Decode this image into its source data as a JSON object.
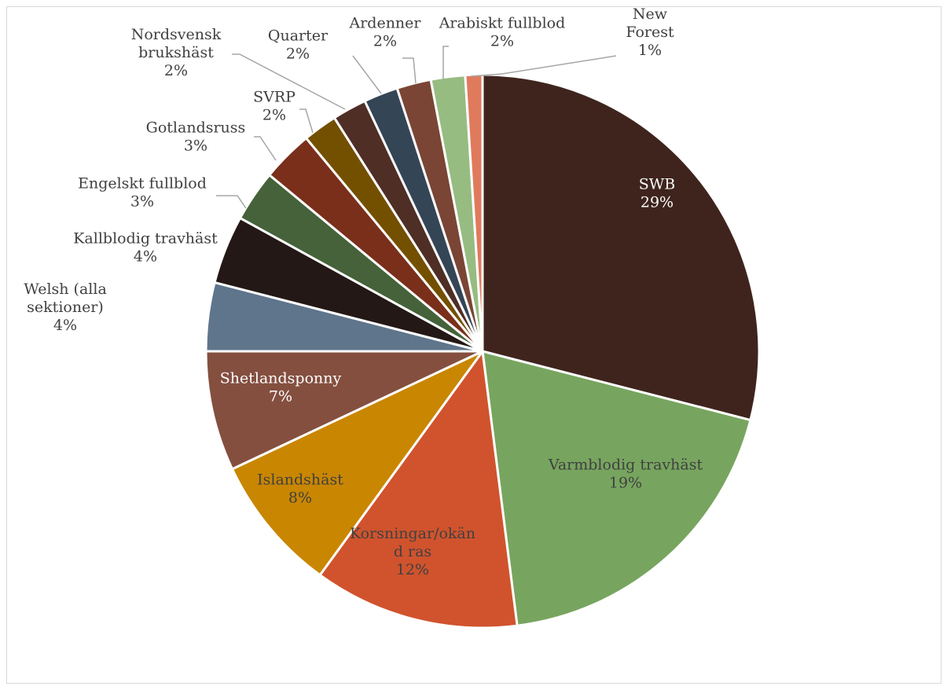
{
  "chart_data": {
    "type": "pie",
    "title": "",
    "slices": [
      {
        "label": "SWB",
        "value": 29,
        "pct": "29%",
        "color": "#3f241d"
      },
      {
        "label": "Varmblodig travhäst",
        "value": 19,
        "pct": "19%",
        "color": "#77a55f"
      },
      {
        "label": "Korsningar/okänd ras",
        "value": 12,
        "pct": "12%",
        "color": "#d0532d",
        "label_lines": [
          "Korsningar/okän",
          "d ras"
        ]
      },
      {
        "label": "Islandshäst",
        "value": 8,
        "pct": "8%",
        "color": "#c98600"
      },
      {
        "label": "Shetlandsponny",
        "value": 7,
        "pct": "7%",
        "color": "#844f3f"
      },
      {
        "label": "Welsh (alla sektioner)",
        "value": 4,
        "pct": "4%",
        "color": "#5f758c",
        "label_lines": [
          "Welsh (alla",
          "sektioner)"
        ]
      },
      {
        "label": "Kallblodig travhäst",
        "value": 4,
        "pct": "4%",
        "color": "#231815"
      },
      {
        "label": "Engelskt fullblod",
        "value": 3,
        "pct": "3%",
        "color": "#45623a"
      },
      {
        "label": "Gotlandsruss",
        "value": 3,
        "pct": "3%",
        "color": "#7a2f1b"
      },
      {
        "label": "SVRP",
        "value": 2,
        "pct": "2%",
        "color": "#735000"
      },
      {
        "label": "Nordsvensk brukshäst",
        "value": 2,
        "pct": "2%",
        "color": "#4f2e26",
        "label_lines": [
          "Nordsvensk",
          "brukshäst"
        ]
      },
      {
        "label": "Quarter",
        "value": 2,
        "pct": "2%",
        "color": "#344556"
      },
      {
        "label": "Ardenner",
        "value": 2,
        "pct": "2%",
        "color": "#7a4535"
      },
      {
        "label": "Arabiskt fullblod",
        "value": 2,
        "pct": "2%",
        "color": "#97bc82"
      },
      {
        "label": "New Forest",
        "value": 1,
        "pct": "1%",
        "color": "#e07a5c",
        "label_lines": [
          "New",
          "Forest"
        ]
      }
    ],
    "label_color": "#404040",
    "leader_line_color": "#a6a6a6"
  }
}
